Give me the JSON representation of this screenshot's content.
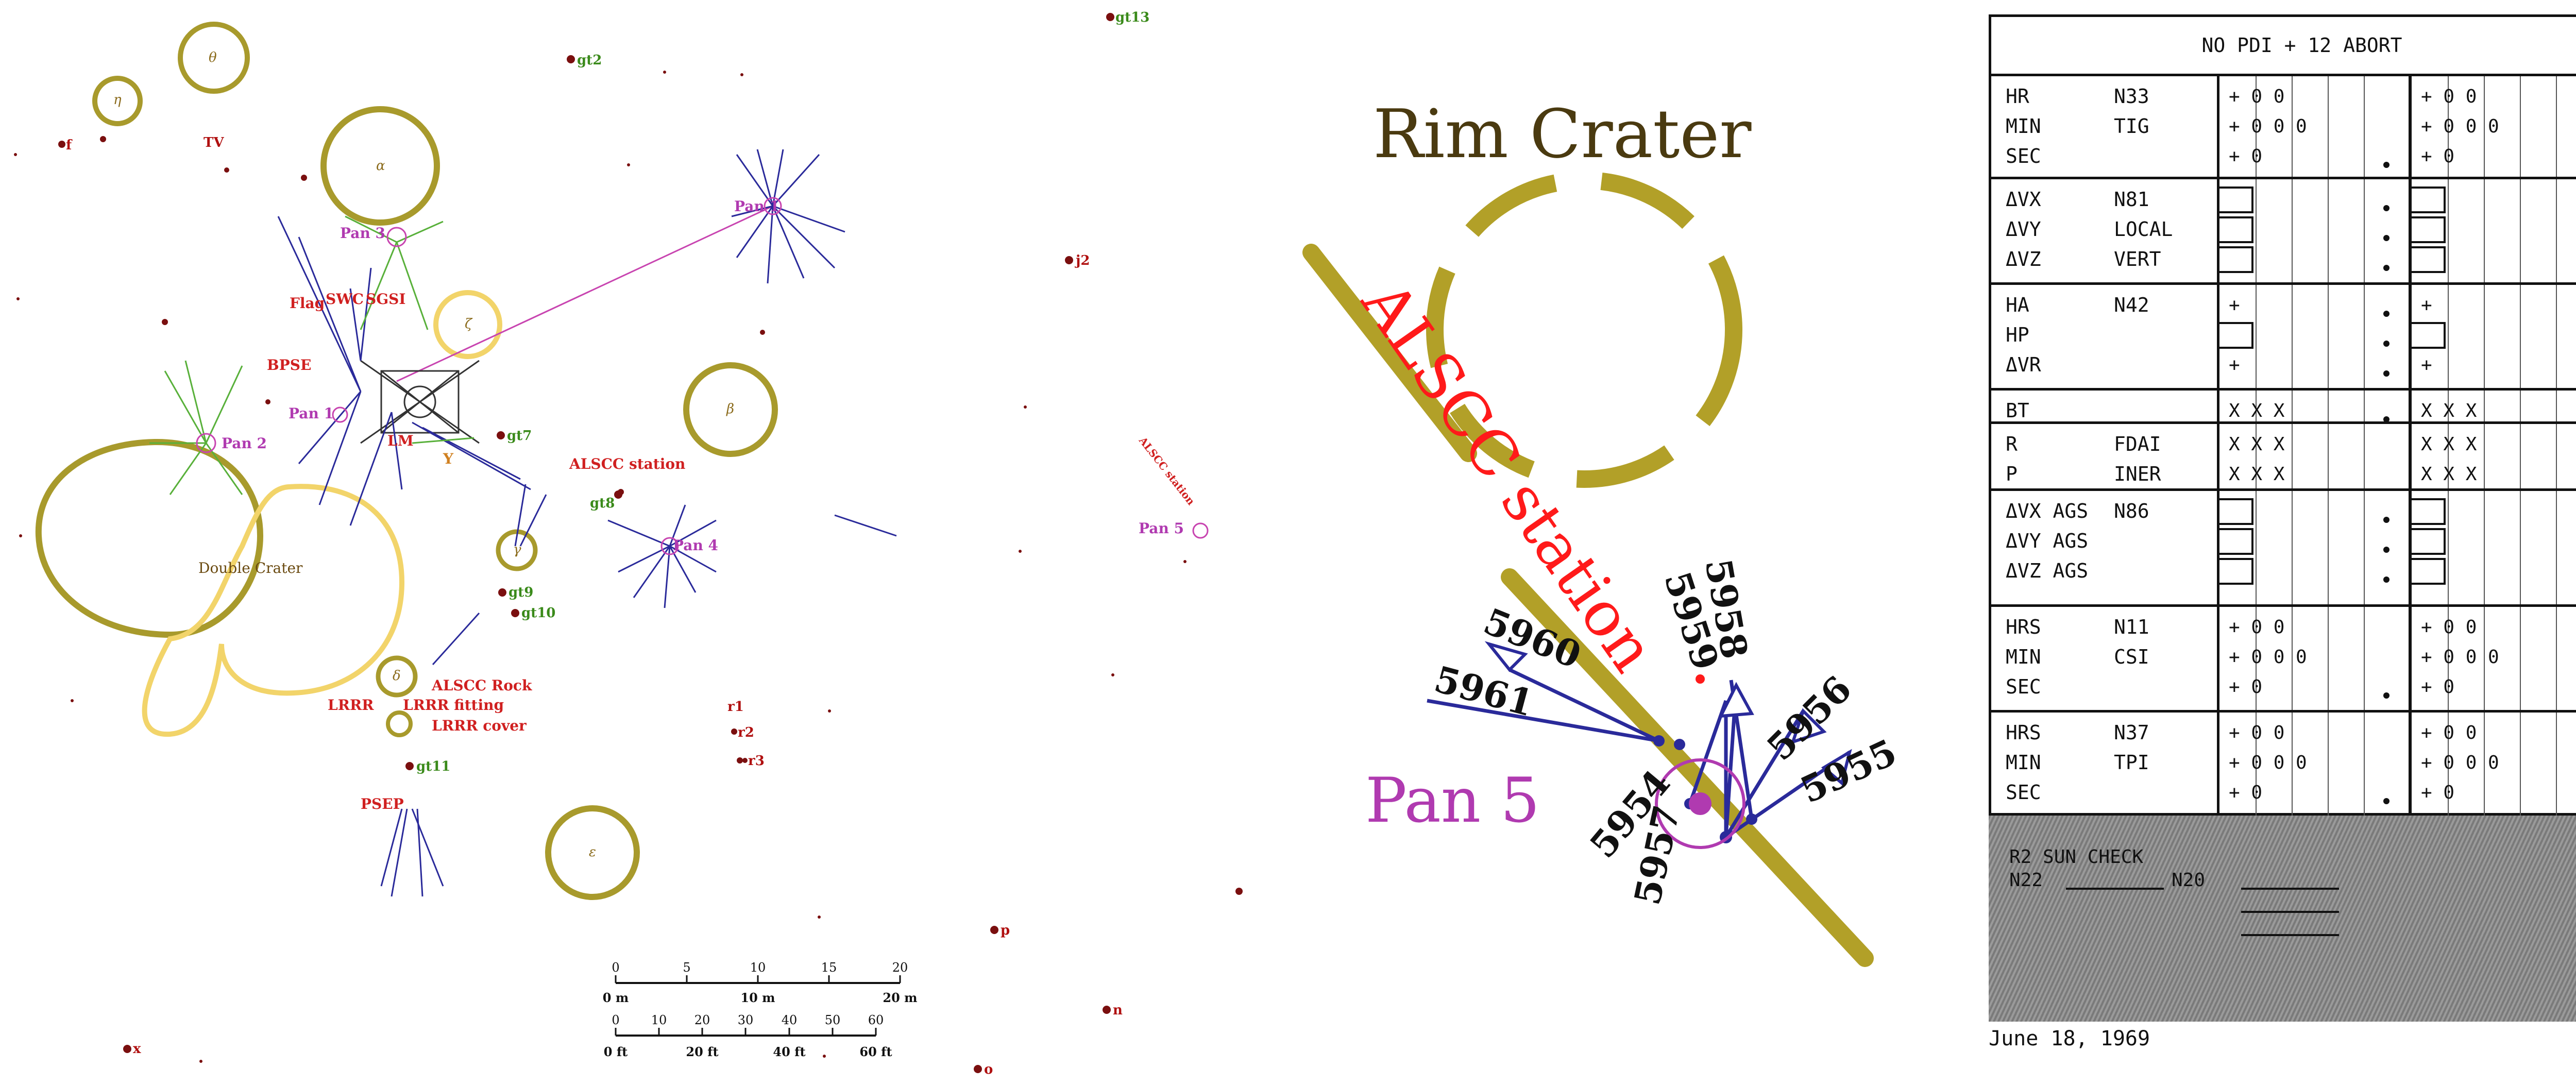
{
  "map": {
    "features": {
      "theta": "θ",
      "eta": "η",
      "alpha": "α",
      "zeta": "ζ",
      "beta": "β",
      "gamma": "γ",
      "delta": "δ",
      "epsilon": "ε",
      "f": "f",
      "tv": "TV",
      "gt2": "gt2",
      "gt13": "gt13",
      "j2": "j2",
      "gt7": "gt7",
      "gt8": "gt8",
      "gt9": "gt9",
      "gt10": "gt10",
      "gt11": "gt11",
      "r1": "r1",
      "r2": "r2",
      "r3": "r3",
      "p": "p",
      "n": "n",
      "o": "o",
      "x": "x"
    },
    "labels": {
      "pan1": "Pan 1",
      "pan2": "Pan 2",
      "pan3": "Pan 3",
      "pan4": "Pan 4",
      "pan5": "Pan 5",
      "pan1b": "Pan 1",
      "flag": "Flag",
      "swc": "SWC",
      "sgsi": "SGSI",
      "bpse": "BPSE",
      "alscc_station": "ALSCC station",
      "alscc_station_small": "ALSCC station",
      "alscc_rock": "ALSCC Rock",
      "lrrr": "LRRR",
      "lrrr_fitting": "LRRR fitting",
      "lrrr_cover": "LRRR cover",
      "psep": "PSEP",
      "double_crater": "Double Crater",
      "y": "Y",
      "lm": "LM"
    },
    "scale_m": {
      "ticks": [
        "0",
        "5",
        "10",
        "15",
        "20"
      ],
      "labels": [
        "0 m",
        "10 m",
        "20 m"
      ]
    },
    "scale_ft": {
      "ticks": [
        "0",
        "10",
        "20",
        "30",
        "40",
        "50",
        "60"
      ],
      "labels": [
        "0 ft",
        "20 ft",
        "40 ft",
        "60 ft"
      ]
    }
  },
  "zoom": {
    "title": "Rim Crater",
    "station": "ALSCC station",
    "pan": "Pan 5",
    "frames": [
      "5954",
      "5955",
      "5956",
      "5957",
      "5958",
      "5959",
      "5960",
      "5961"
    ]
  },
  "form": {
    "title": "NO PDI + 12 ABORT",
    "sections": [
      {
        "lines": [
          {
            "l": "HR",
            "n": "N33"
          },
          {
            "l": "MIN",
            "n": "TIG"
          },
          {
            "l": "SEC",
            "n": ""
          }
        ]
      },
      {
        "lines": [
          {
            "l": "ΔVX",
            "n": "N81"
          },
          {
            "l": "ΔVY",
            "n": "LOCAL"
          },
          {
            "l": "ΔVZ",
            "n": "VERT"
          }
        ]
      },
      {
        "lines": [
          {
            "l": "HA",
            "n": "N42"
          },
          {
            "l": "HP",
            "n": ""
          },
          {
            "l": "ΔVR",
            "n": ""
          }
        ]
      },
      {
        "lines": [
          {
            "l": "BT",
            "n": ""
          }
        ]
      },
      {
        "lines": [
          {
            "l": "R",
            "n": "FDAI"
          },
          {
            "l": "P",
            "n": "INER"
          }
        ]
      },
      {
        "lines": [
          {
            "l": "ΔVX AGS",
            "n": "N86"
          },
          {
            "l": "ΔVY AGS",
            "n": ""
          },
          {
            "l": "ΔVZ AGS",
            "n": ""
          }
        ]
      },
      {
        "lines": [
          {
            "l": "HRS",
            "n": "N11"
          },
          {
            "l": "MIN",
            "n": "CSI"
          },
          {
            "l": "SEC",
            "n": ""
          }
        ]
      },
      {
        "lines": [
          {
            "l": "HRS",
            "n": "N37"
          },
          {
            "l": "MIN",
            "n": "TPI"
          },
          {
            "l": "SEC",
            "n": ""
          }
        ]
      }
    ],
    "cells": {
      "s1": [
        "+ 0 0",
        "+ 0 0 0",
        "+ 0"
      ],
      "s3": [
        "+",
        "",
        "+"
      ],
      "s4": [
        "X X X"
      ],
      "s5": [
        "X X X",
        "X X X"
      ],
      "s7": [
        "+ 0 0",
        "+ 0 0 0",
        "+ 0"
      ],
      "s8": [
        "+ 0 0",
        "+ 0 0 0",
        "+ 0"
      ]
    },
    "sun_check": {
      "title": "R2 SUN CHECK",
      "n22": "N22",
      "n20": "N20"
    },
    "date": "June 18, 1969"
  }
}
